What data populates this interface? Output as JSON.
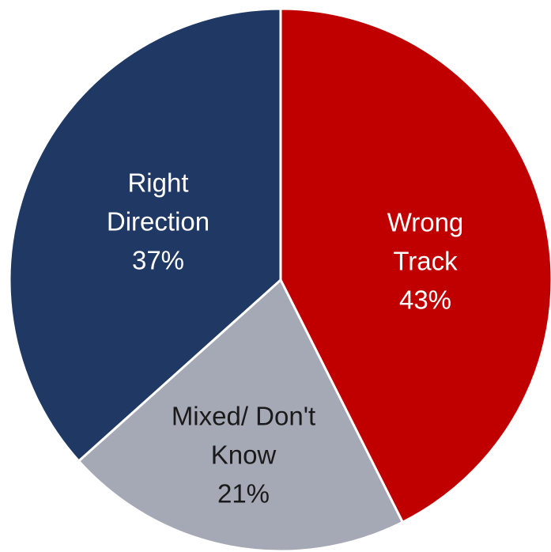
{
  "chart_data": {
    "type": "pie",
    "categories": [
      "Wrong Track",
      "Mixed/ Don't Know",
      "Right Direction"
    ],
    "values": [
      43,
      21,
      37
    ],
    "value_labels": [
      "43%",
      "21%",
      "37%"
    ],
    "colors": [
      "#c00000",
      "#a5a8b5",
      "#1f3864"
    ]
  }
}
